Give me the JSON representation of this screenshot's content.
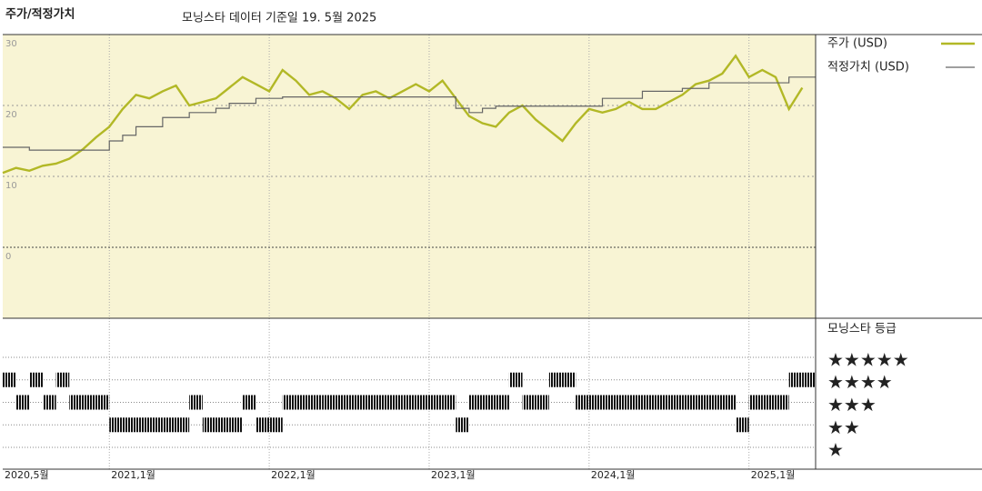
{
  "chart_data": [
    {
      "type": "line",
      "title": "주가/적정가치",
      "subtitle": "모닝스타 데이터 기준일 19. 5월 2025",
      "x": [
        "2020-05",
        "2020-06",
        "2020-07",
        "2020-08",
        "2020-09",
        "2020-10",
        "2020-11",
        "2020-12",
        "2021-01",
        "2021-02",
        "2021-03",
        "2021-04",
        "2021-05",
        "2021-06",
        "2021-07",
        "2021-08",
        "2021-09",
        "2021-10",
        "2021-11",
        "2021-12",
        "2022-01",
        "2022-02",
        "2022-03",
        "2022-04",
        "2022-05",
        "2022-06",
        "2022-07",
        "2022-08",
        "2022-09",
        "2022-10",
        "2022-11",
        "2022-12",
        "2023-01",
        "2023-02",
        "2023-03",
        "2023-04",
        "2023-05",
        "2023-06",
        "2023-07",
        "2023-08",
        "2023-09",
        "2023-10",
        "2023-11",
        "2023-12",
        "2024-01",
        "2024-02",
        "2024-03",
        "2024-04",
        "2024-05",
        "2024-06",
        "2024-07",
        "2024-08",
        "2024-09",
        "2024-10",
        "2024-11",
        "2024-12",
        "2025-01",
        "2025-02",
        "2025-03",
        "2025-04",
        "2025-05"
      ],
      "series": [
        {
          "name": "주가 (USD)",
          "color": "#b2b826",
          "values": [
            10.5,
            11.2,
            10.8,
            11.5,
            11.8,
            12.5,
            13.8,
            15.5,
            17,
            19.5,
            21.5,
            21,
            22,
            22.8,
            20,
            20.5,
            21,
            22.5,
            24,
            23,
            22,
            25,
            23.5,
            21.5,
            22,
            21,
            19.5,
            21.5,
            22,
            21,
            22,
            23,
            22,
            23.5,
            21,
            18.5,
            17.5,
            17,
            19,
            20,
            18,
            16.5,
            15,
            17.5,
            19.5,
            19,
            19.5,
            20.5,
            19.5,
            19.5,
            20.5,
            21.5,
            23,
            23.5,
            24.5,
            27,
            24,
            25,
            24,
            19.5,
            22.5
          ]
        },
        {
          "name": "적정가치 (USD)",
          "color": "#666666",
          "step": true,
          "values": [
            14.1,
            14.1,
            13.7,
            13.7,
            13.7,
            13.7,
            13.7,
            13.7,
            15,
            15.8,
            17,
            17,
            18.3,
            18.3,
            19,
            19,
            19.6,
            20.3,
            20.3,
            21,
            21,
            21.2,
            21.2,
            21.2,
            21.2,
            21.2,
            21.2,
            21.2,
            21.2,
            21.2,
            21.2,
            21.2,
            21.2,
            21.2,
            19.6,
            19,
            19.6,
            19.9,
            19.9,
            19.9,
            19.9,
            19.9,
            19.9,
            19.9,
            19.9,
            21,
            21,
            21,
            22,
            22,
            22,
            22.4,
            22.4,
            23.2,
            23.2,
            23.2,
            23.2,
            23.2,
            23.2,
            24,
            24
          ]
        }
      ],
      "ylim": [
        -10,
        30
      ],
      "yticks": [
        0,
        10,
        20,
        30
      ],
      "grid": true
    },
    {
      "type": "rating",
      "title": "모닝스타 등급",
      "x": [
        "2020-05",
        "2020-06",
        "2020-07",
        "2020-08",
        "2020-09",
        "2020-10",
        "2020-11",
        "2020-12",
        "2021-01",
        "2021-02",
        "2021-03",
        "2021-04",
        "2021-05",
        "2021-06",
        "2021-07",
        "2021-08",
        "2021-09",
        "2021-10",
        "2021-11",
        "2021-12",
        "2022-01",
        "2022-02",
        "2022-03",
        "2022-04",
        "2022-05",
        "2022-06",
        "2022-07",
        "2022-08",
        "2022-09",
        "2022-10",
        "2022-11",
        "2022-12",
        "2023-01",
        "2023-02",
        "2023-03",
        "2023-04",
        "2023-05",
        "2023-06",
        "2023-07",
        "2023-08",
        "2023-09",
        "2023-10",
        "2023-11",
        "2023-12",
        "2024-01",
        "2024-02",
        "2024-03",
        "2024-04",
        "2024-05",
        "2024-06",
        "2024-07",
        "2024-08",
        "2024-09",
        "2024-10",
        "2024-11",
        "2024-12",
        "2025-01",
        "2025-02",
        "2025-03",
        "2025-04",
        "2025-05"
      ],
      "values": [
        4,
        3,
        4,
        3,
        4,
        3,
        3,
        3,
        2,
        2,
        2,
        2,
        2,
        2,
        3,
        2,
        2,
        2,
        3,
        2,
        2,
        3,
        3,
        3,
        3,
        3,
        3,
        3,
        3,
        3,
        3,
        3,
        3,
        3,
        2,
        3,
        3,
        3,
        4,
        3,
        3,
        4,
        4,
        3,
        3,
        3,
        3,
        3,
        3,
        3,
        3,
        3,
        3,
        3,
        3,
        2,
        3,
        3,
        3,
        4,
        4
      ],
      "color": "#111111",
      "xlim": [
        "2020-05",
        "2025-06"
      ],
      "xticks": [
        {
          "value": "2020-05",
          "label": "2020,5월"
        },
        {
          "value": "2021-01",
          "label": "2021,1월"
        },
        {
          "value": "2022-01",
          "label": "2022,1월"
        },
        {
          "value": "2023-01",
          "label": "2023,1월"
        },
        {
          "value": "2024-01",
          "label": "2024,1월"
        },
        {
          "value": "2025-01",
          "label": "2025,1월"
        }
      ],
      "ylim": [
        0.5,
        5.5
      ],
      "yticks": [
        {
          "value": 5,
          "label": "★★★★★"
        },
        {
          "value": 4,
          "label": "★★★★"
        },
        {
          "value": 3,
          "label": "★★★"
        },
        {
          "value": 2,
          "label": "★★"
        },
        {
          "value": 1,
          "label": "★"
        }
      ]
    }
  ]
}
